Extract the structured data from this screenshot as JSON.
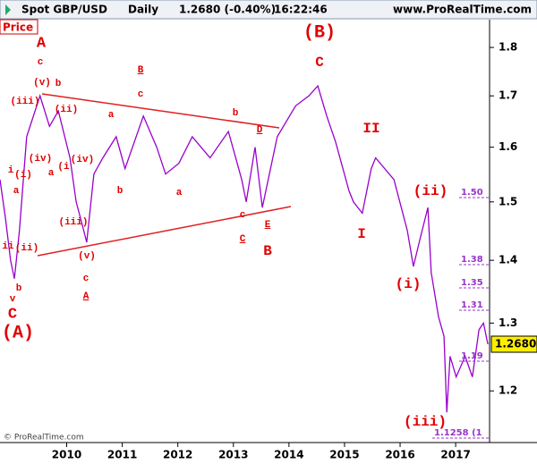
{
  "chart_data": {
    "type": "line",
    "scale": "log",
    "header": {
      "symbol": "Spot GBP/USD",
      "period": "Daily",
      "quote": "1.2680 (-0.40%)",
      "time": "16:22:46",
      "site": "www.ProRealTime.com"
    },
    "panel_label": "Price",
    "copyright": "© ProRealTime.com",
    "last_label": "1.2680",
    "x": [
      2008.8,
      2008.9,
      2008.99,
      2009.06,
      2009.15,
      2009.28,
      2009.52,
      2009.69,
      2009.85,
      2010.06,
      2010.17,
      2010.28,
      2010.36,
      2010.49,
      2010.65,
      2010.89,
      2011.05,
      2011.38,
      2011.62,
      2011.78,
      2012.02,
      2012.26,
      2012.58,
      2012.91,
      2013.15,
      2013.23,
      2013.39,
      2013.52,
      2013.79,
      2014.12,
      2014.36,
      2014.52,
      2014.68,
      2014.84,
      2015.08,
      2015.16,
      2015.32,
      2015.48,
      2015.56,
      2015.89,
      2016.13,
      2016.24,
      2016.37,
      2016.5,
      2016.56,
      2016.69,
      2016.79,
      2016.84,
      2016.9,
      2017.01,
      2017.17,
      2017.3,
      2017.42,
      2017.5,
      2017.58
    ],
    "series": [
      {
        "name": "GBP/USD",
        "color": "#9900cc",
        "values": [
          1.54,
          1.47,
          1.4,
          1.37,
          1.45,
          1.62,
          1.7,
          1.64,
          1.67,
          1.58,
          1.5,
          1.46,
          1.43,
          1.55,
          1.58,
          1.62,
          1.56,
          1.66,
          1.6,
          1.55,
          1.57,
          1.62,
          1.58,
          1.63,
          1.54,
          1.5,
          1.6,
          1.49,
          1.62,
          1.68,
          1.7,
          1.72,
          1.66,
          1.61,
          1.52,
          1.5,
          1.48,
          1.56,
          1.58,
          1.54,
          1.45,
          1.39,
          1.44,
          1.49,
          1.38,
          1.31,
          1.28,
          1.17,
          1.25,
          1.22,
          1.25,
          1.22,
          1.29,
          1.3,
          1.268
        ]
      }
    ],
    "xlim": [
      2008.8,
      2017.61
    ],
    "xticks": [
      2010,
      2011,
      2012,
      2013,
      2014,
      2015,
      2016,
      2017
    ],
    "ylim": [
      1.129,
      1.86
    ],
    "yticks": [
      1.2,
      1.3,
      1.4,
      1.5,
      1.6,
      1.7,
      1.8
    ],
    "annotations": [
      "A",
      "c",
      "(v)",
      "b",
      "(iii)",
      "(ii)",
      "a",
      "B",
      "c",
      "b",
      "D",
      "(iv)",
      "(iv)",
      "i",
      "(i)",
      "(i",
      "a",
      "a",
      "b",
      "a",
      "c",
      "(iii)",
      "ii",
      "(ii)",
      "(v)",
      "C",
      "E",
      "B",
      "c",
      "A",
      "b",
      "v",
      "C",
      "(A)",
      "(B)",
      "C",
      "II",
      "I",
      "(ii)",
      "(i)",
      "(iii)"
    ],
    "levels": [
      "1.50",
      "1.38",
      "1.35",
      "1.31",
      "1.19",
      "1.1258 (1"
    ]
  }
}
